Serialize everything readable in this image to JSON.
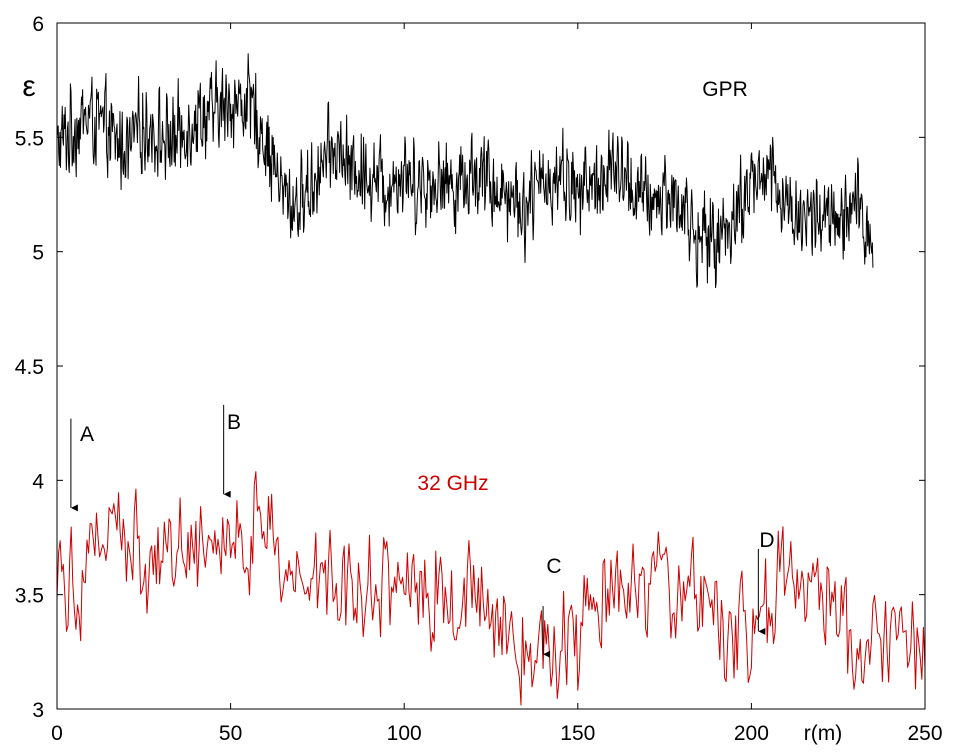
{
  "chart_data": {
    "type": "line",
    "title": "",
    "xlabel": "r(m)",
    "ylabel": "ε",
    "xlim": [
      0,
      250
    ],
    "ylim": [
      3,
      6
    ],
    "x_ticks": [
      0,
      50,
      100,
      150,
      200,
      250
    ],
    "y_ticks": [
      3,
      3.5,
      4,
      4.5,
      5,
      5.5,
      6
    ],
    "grid": false,
    "legend": "none",
    "series": [
      {
        "name": "GPR",
        "color": "#000000",
        "x_range": [
          0,
          235
        ],
        "x": [
          0,
          5,
          10,
          15,
          20,
          25,
          30,
          35,
          40,
          45,
          50,
          55,
          60,
          65,
          70,
          75,
          80,
          85,
          90,
          95,
          100,
          105,
          110,
          115,
          120,
          125,
          130,
          135,
          140,
          145,
          150,
          155,
          160,
          165,
          170,
          175,
          180,
          185,
          190,
          195,
          200,
          205,
          210,
          215,
          220,
          225,
          230,
          235
        ],
        "y": [
          5.45,
          5.55,
          5.6,
          5.5,
          5.45,
          5.55,
          5.5,
          5.5,
          5.6,
          5.6,
          5.65,
          5.65,
          5.5,
          5.25,
          5.2,
          5.35,
          5.45,
          5.35,
          5.35,
          5.3,
          5.35,
          5.3,
          5.3,
          5.3,
          5.35,
          5.3,
          5.25,
          5.2,
          5.3,
          5.35,
          5.25,
          5.3,
          5.35,
          5.3,
          5.2,
          5.25,
          5.2,
          5.05,
          5.05,
          5.15,
          5.3,
          5.35,
          5.2,
          5.15,
          5.15,
          5.1,
          5.2,
          5.05
        ],
        "noise_amplitude": 0.3,
        "samples": 1400
      },
      {
        "name": "32 GHz",
        "color": "#cc0000",
        "x_range": [
          0,
          250
        ],
        "x": [
          0,
          5,
          10,
          15,
          20,
          25,
          30,
          35,
          40,
          45,
          50,
          55,
          60,
          65,
          70,
          75,
          80,
          85,
          90,
          95,
          100,
          105,
          110,
          115,
          120,
          125,
          130,
          135,
          140,
          145,
          150,
          155,
          160,
          165,
          170,
          175,
          180,
          185,
          190,
          195,
          200,
          205,
          210,
          215,
          220,
          225,
          230,
          235,
          240,
          245,
          250
        ],
        "y": [
          3.7,
          3.55,
          3.75,
          3.8,
          3.7,
          3.65,
          3.7,
          3.7,
          3.75,
          3.75,
          3.75,
          3.7,
          3.85,
          3.6,
          3.55,
          3.65,
          3.6,
          3.55,
          3.55,
          3.6,
          3.6,
          3.5,
          3.5,
          3.45,
          3.55,
          3.5,
          3.35,
          3.3,
          3.25,
          3.3,
          3.3,
          3.45,
          3.5,
          3.45,
          3.45,
          3.55,
          3.5,
          3.5,
          3.45,
          3.3,
          3.25,
          3.5,
          3.55,
          3.55,
          3.5,
          3.5,
          3.2,
          3.25,
          3.35,
          3.3,
          3.3
        ],
        "noise_amplitude": 0.38,
        "samples": 550
      }
    ],
    "annotations": [
      {
        "text": "GPR",
        "color": "#000000"
      },
      {
        "text": "32 GHz",
        "color": "#cc0000"
      },
      {
        "text": "A",
        "color": "#000000",
        "arrow_x": 4,
        "arrow_from_y": 4.27,
        "arrow_to_y": 3.84
      },
      {
        "text": "B",
        "color": "#000000",
        "arrow_x": 48,
        "arrow_from_y": 4.33,
        "arrow_to_y": 3.9
      },
      {
        "text": "C",
        "color": "#000000",
        "arrow_x": 140,
        "arrow_from_y": 3.45,
        "arrow_to_y": 3.2
      },
      {
        "text": "D",
        "color": "#000000",
        "arrow_x": 202,
        "arrow_from_y": 3.7,
        "arrow_to_y": 3.3
      }
    ]
  }
}
